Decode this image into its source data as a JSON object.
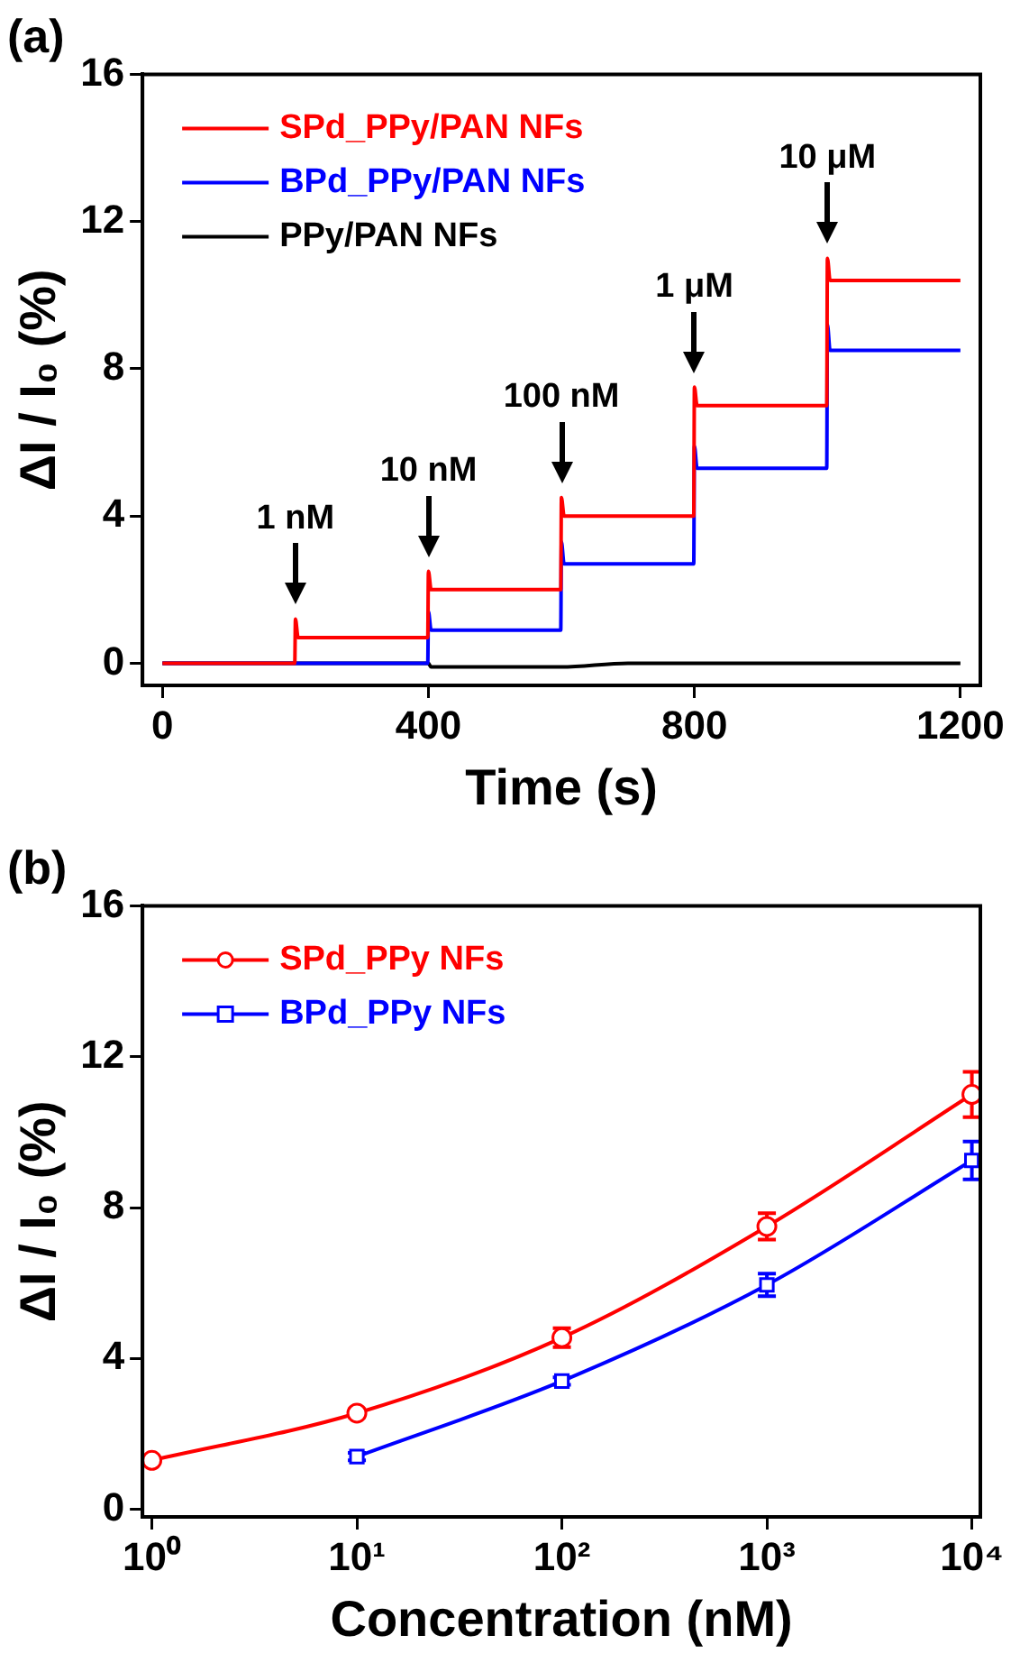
{
  "chart_data": [
    {
      "type": "line",
      "title": "(a)",
      "xlabel": "Time (s)",
      "ylabel": "ΔI / I₀ (%)",
      "xlim": [
        -30,
        1230
      ],
      "ylim": [
        -0.6,
        16
      ],
      "xticks": [
        0,
        400,
        800,
        1200
      ],
      "yticks": [
        0,
        4,
        8,
        12,
        16
      ],
      "grid": false,
      "legend": "top left",
      "marker": "none",
      "line_style": "solid",
      "series": [
        {
          "name": "SPd_PPy/PAN NFs",
          "color": "#ff0000",
          "x": [
            0,
            199,
            200,
            204,
            399,
            400,
            404,
            599,
            600,
            604,
            799,
            800,
            804,
            999,
            1000,
            1004,
            1200
          ],
          "values": [
            0,
            0,
            1.2,
            0.7,
            0.7,
            2.5,
            2.0,
            2.0,
            4.5,
            4.0,
            4.0,
            7.5,
            7.0,
            7.0,
            11.0,
            10.4,
            10.4
          ]
        },
        {
          "name": "BPd_PPy/PAN NFs",
          "color": "#0000ff",
          "x": [
            0,
            399,
            400,
            404,
            599,
            600,
            604,
            799,
            800,
            804,
            999,
            1000,
            1004,
            1200
          ],
          "values": [
            0,
            0,
            1.4,
            0.9,
            0.9,
            3.3,
            2.7,
            2.7,
            5.9,
            5.3,
            5.3,
            9.2,
            8.5,
            8.5
          ]
        },
        {
          "name": "PPy/PAN NFs",
          "color": "#000000",
          "x": [
            0,
            400,
            404,
            600,
            700,
            1200
          ],
          "values": [
            0,
            0,
            -0.1,
            -0.1,
            0,
            0
          ]
        }
      ],
      "annotations": [
        {
          "text": "1 nM",
          "x": 200,
          "y": 1.2
        },
        {
          "text": "10 nM",
          "x": 400,
          "y": 2.5
        },
        {
          "text": "100 nM",
          "x": 600,
          "y": 4.5
        },
        {
          "text": "1 μM",
          "x": 800,
          "y": 7.5
        },
        {
          "text": "10 μM",
          "x": 1000,
          "y": 11.0
        }
      ]
    },
    {
      "type": "line",
      "title": "(b)",
      "xlabel": "Concentration (nM)",
      "ylabel": "ΔI / I₀ (%)",
      "log": "x",
      "xlim": [
        0.9,
        11000
      ],
      "ylim": [
        -0.2,
        16
      ],
      "xticks": [
        {
          "value": 1,
          "label": "10⁰"
        },
        {
          "value": 10,
          "label": "10¹"
        },
        {
          "value": 100,
          "label": "10²"
        },
        {
          "value": 1000,
          "label": "10³"
        },
        {
          "value": 10000,
          "label": "10⁴"
        }
      ],
      "yticks": [
        0,
        4,
        8,
        12,
        16
      ],
      "grid": false,
      "legend": "top left",
      "line_style": "solid",
      "series": [
        {
          "name": "SPd_PPy NFs",
          "color": "#ff0000",
          "marker": "circle",
          "x": [
            1,
            10,
            100,
            1000,
            10000
          ],
          "values": [
            1.3,
            2.55,
            4.55,
            7.5,
            11.0
          ],
          "errors": [
            null,
            0.1,
            0.25,
            0.35,
            0.6
          ]
        },
        {
          "name": "BPd_PPy NFs",
          "color": "#0000ff",
          "marker": "square",
          "x": [
            10,
            100,
            1000,
            10000
          ],
          "values": [
            1.4,
            3.4,
            5.95,
            9.25
          ],
          "errors": [
            0.1,
            0.1,
            0.3,
            0.5
          ]
        }
      ]
    }
  ]
}
